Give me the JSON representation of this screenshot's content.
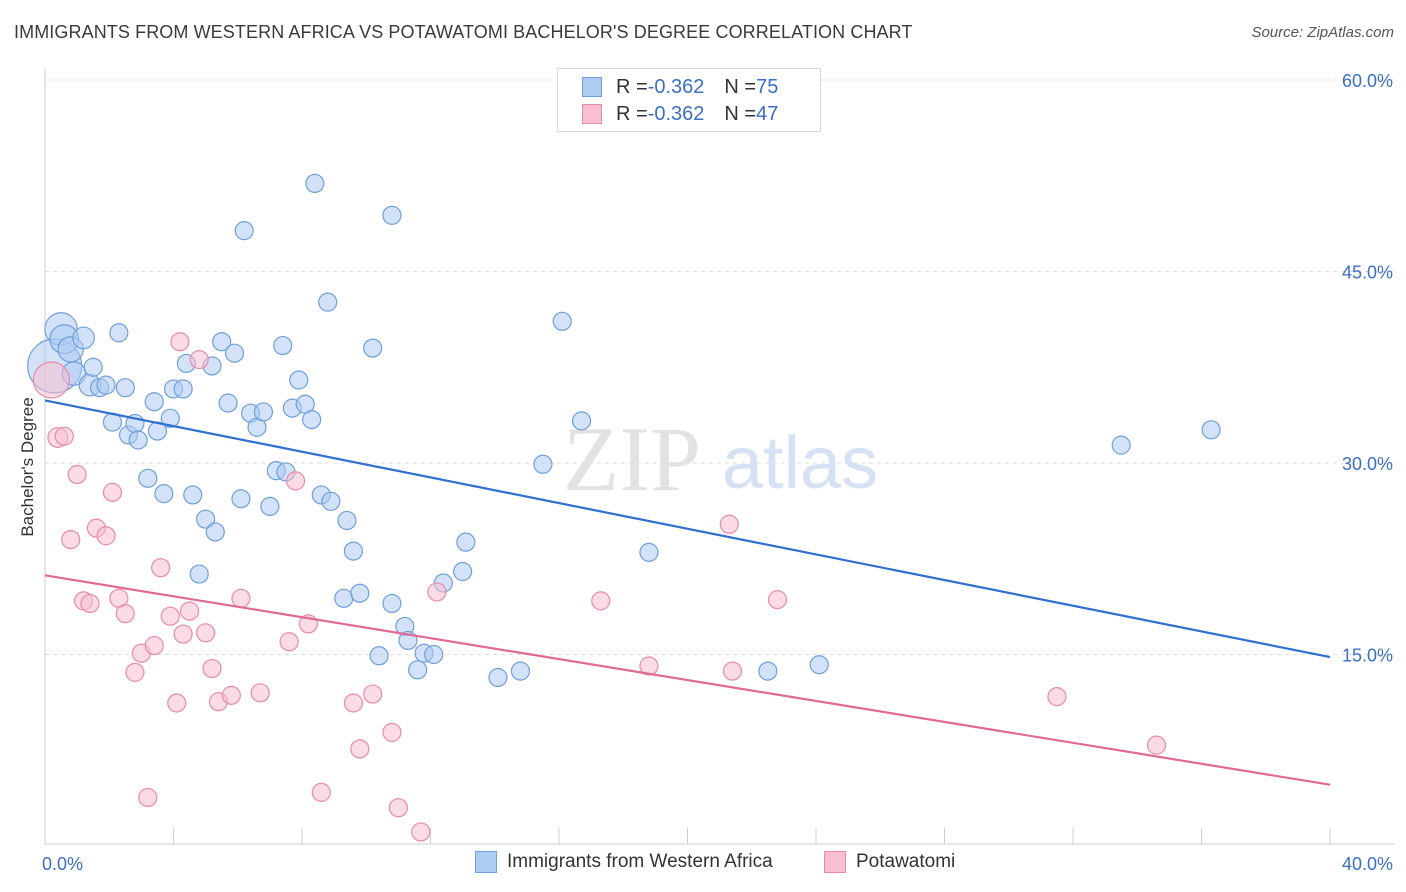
{
  "title": "IMMIGRANTS FROM WESTERN AFRICA VS POTAWATOMI BACHELOR'S DEGREE CORRELATION CHART",
  "source": "Source: ZipAtlas.com",
  "watermark": {
    "zip": "ZIP",
    "atlas": "atlas"
  },
  "legend": {
    "rows": [
      {
        "r_label": "R = ",
        "r_value": "-0.362",
        "n_label": "N = ",
        "n_value": "75"
      },
      {
        "r_label": "R = ",
        "r_value": "-0.362",
        "n_label": "N = ",
        "n_value": "47"
      }
    ]
  },
  "colors": {
    "blue_fill": "#aecbf2",
    "blue_stroke": "#6f9fdc",
    "blue_line": "#2f6fcf",
    "pink_fill": "#f7bfd0",
    "pink_stroke": "#e98aa8",
    "pink_line": "#e06a92",
    "tick_label": "#3a6fc4",
    "grid": "#dcdcdc"
  },
  "chart_data": {
    "type": "scatter",
    "title": "IMMIGRANTS FROM WESTERN AFRICA VS POTAWATOMI BACHELOR'S DEGREE CORRELATION CHART",
    "xlabel": "",
    "ylabel": "Bachelor's Degree",
    "xlim": [
      0,
      40
    ],
    "ylim": [
      0,
      60
    ],
    "x_tick_labels": [
      "0.0%",
      "40.0%"
    ],
    "y_ticks": [
      15,
      30,
      45,
      60
    ],
    "y_tick_labels": [
      "15.0%",
      "30.0%",
      "45.0%",
      "60.0%"
    ],
    "grid": true,
    "legend_position": "top-center",
    "series": [
      {
        "name": "Immigrants from Western Africa",
        "color": "#aecbf2",
        "trend": {
          "x": [
            0,
            40
          ],
          "y": [
            34.9,
            14.8
          ]
        },
        "points": [
          [
            0.3,
            37.6,
            3.0
          ],
          [
            0.5,
            40.5,
            1.8
          ],
          [
            0.6,
            39.7,
            1.6
          ],
          [
            0.8,
            38.9,
            1.4
          ],
          [
            0.9,
            37.0,
            1.3
          ],
          [
            1.2,
            39.8,
            1.2
          ],
          [
            1.4,
            36.1,
            1.2
          ],
          [
            1.5,
            37.5,
            1.0
          ],
          [
            1.7,
            35.9,
            1.0
          ],
          [
            1.9,
            36.1,
            1.0
          ],
          [
            2.1,
            33.2,
            1.0
          ],
          [
            2.3,
            40.2,
            1.0
          ],
          [
            2.5,
            35.9,
            1.0
          ],
          [
            2.6,
            32.2,
            1.0
          ],
          [
            2.8,
            33.1,
            1.0
          ],
          [
            2.9,
            31.8,
            1.0
          ],
          [
            3.2,
            28.8,
            1.0
          ],
          [
            3.4,
            34.8,
            1.0
          ],
          [
            3.5,
            32.5,
            1.0
          ],
          [
            3.7,
            27.6,
            1.0
          ],
          [
            3.9,
            33.5,
            1.0
          ],
          [
            4.0,
            35.8,
            1.0
          ],
          [
            4.3,
            35.8,
            1.0
          ],
          [
            4.4,
            37.8,
            1.0
          ],
          [
            4.6,
            27.5,
            1.0
          ],
          [
            4.8,
            21.3,
            1.0
          ],
          [
            5.0,
            25.6,
            1.0
          ],
          [
            5.2,
            37.6,
            1.0
          ],
          [
            5.3,
            24.6,
            1.0
          ],
          [
            5.5,
            39.5,
            1.0
          ],
          [
            5.7,
            34.7,
            1.0
          ],
          [
            5.9,
            38.6,
            1.0
          ],
          [
            6.1,
            27.2,
            1.0
          ],
          [
            6.2,
            48.2,
            1.0
          ],
          [
            6.4,
            33.9,
            1.0
          ],
          [
            6.6,
            32.8,
            1.0
          ],
          [
            6.8,
            34.0,
            1.0
          ],
          [
            7.0,
            26.6,
            1.0
          ],
          [
            7.2,
            29.4,
            1.0
          ],
          [
            7.4,
            39.2,
            1.0
          ],
          [
            7.5,
            29.3,
            1.0
          ],
          [
            7.7,
            34.3,
            1.0
          ],
          [
            7.9,
            36.5,
            1.0
          ],
          [
            8.1,
            34.6,
            1.0
          ],
          [
            8.3,
            33.4,
            1.0
          ],
          [
            8.4,
            51.9,
            1.0
          ],
          [
            8.6,
            27.5,
            1.0
          ],
          [
            8.8,
            42.6,
            1.0
          ],
          [
            8.9,
            27.0,
            1.0
          ],
          [
            9.3,
            19.4,
            1.0
          ],
          [
            9.4,
            25.5,
            1.0
          ],
          [
            9.6,
            23.1,
            1.0
          ],
          [
            9.8,
            19.8,
            1.0
          ],
          [
            10.2,
            39.0,
            1.0
          ],
          [
            10.4,
            14.9,
            1.0
          ],
          [
            10.8,
            49.4,
            1.0
          ],
          [
            10.8,
            19.0,
            1.0
          ],
          [
            11.2,
            17.2,
            1.0
          ],
          [
            11.3,
            16.1,
            1.0
          ],
          [
            11.6,
            13.8,
            1.0
          ],
          [
            11.8,
            15.1,
            1.0
          ],
          [
            12.1,
            15.0,
            1.0
          ],
          [
            12.4,
            20.6,
            1.0
          ],
          [
            13.0,
            21.5,
            1.0
          ],
          [
            13.1,
            23.8,
            1.0
          ],
          [
            14.1,
            13.2,
            1.0
          ],
          [
            14.8,
            13.7,
            1.0
          ],
          [
            15.5,
            29.9,
            1.0
          ],
          [
            16.1,
            41.1,
            1.0
          ],
          [
            16.7,
            33.3,
            1.0
          ],
          [
            18.8,
            23.0,
            1.0
          ],
          [
            22.5,
            13.7,
            1.0
          ],
          [
            24.1,
            14.2,
            1.0
          ],
          [
            33.5,
            31.4,
            1.0
          ],
          [
            36.3,
            32.6,
            1.0
          ]
        ]
      },
      {
        "name": "Potawatomi",
        "color": "#f7bfd0",
        "trend": {
          "x": [
            0,
            40
          ],
          "y": [
            21.2,
            4.8
          ]
        },
        "points": [
          [
            0.2,
            36.5,
            2.0
          ],
          [
            0.4,
            32.0,
            1.1
          ],
          [
            0.6,
            32.1,
            1.0
          ],
          [
            0.8,
            24.0,
            1.0
          ],
          [
            1.0,
            29.1,
            1.0
          ],
          [
            1.2,
            19.2,
            1.0
          ],
          [
            1.4,
            19.0,
            1.0
          ],
          [
            1.6,
            24.9,
            1.0
          ],
          [
            1.9,
            24.3,
            1.0
          ],
          [
            2.1,
            27.7,
            1.0
          ],
          [
            2.3,
            19.4,
            1.0
          ],
          [
            2.5,
            18.2,
            1.0
          ],
          [
            2.8,
            13.6,
            1.0
          ],
          [
            3.0,
            15.1,
            1.0
          ],
          [
            3.2,
            3.8,
            1.0
          ],
          [
            3.4,
            15.7,
            1.0
          ],
          [
            3.6,
            21.8,
            1.0
          ],
          [
            3.9,
            18.0,
            1.0
          ],
          [
            4.1,
            11.2,
            1.0
          ],
          [
            4.3,
            16.6,
            1.0
          ],
          [
            4.5,
            18.4,
            1.0
          ],
          [
            4.8,
            38.1,
            1.0
          ],
          [
            5.0,
            16.7,
            1.0
          ],
          [
            5.2,
            13.9,
            1.0
          ],
          [
            5.4,
            11.3,
            1.0
          ],
          [
            5.8,
            11.8,
            1.0
          ],
          [
            6.1,
            19.4,
            1.0
          ],
          [
            6.7,
            12.0,
            1.0
          ],
          [
            7.6,
            16.0,
            1.0
          ],
          [
            7.8,
            28.6,
            1.0
          ],
          [
            8.2,
            17.4,
            1.0
          ],
          [
            8.6,
            4.2,
            1.0
          ],
          [
            9.6,
            11.2,
            1.0
          ],
          [
            9.8,
            7.6,
            1.0
          ],
          [
            10.2,
            11.9,
            1.0
          ],
          [
            10.8,
            8.9,
            1.0
          ],
          [
            11.0,
            3.0,
            1.0
          ],
          [
            11.7,
            1.1,
            1.0
          ],
          [
            12.2,
            19.9,
            1.0
          ],
          [
            4.2,
            39.5,
            1.0
          ],
          [
            17.3,
            19.2,
            1.0
          ],
          [
            18.8,
            14.1,
            1.0
          ],
          [
            21.3,
            25.2,
            1.0
          ],
          [
            21.4,
            13.7,
            1.0
          ],
          [
            22.8,
            19.3,
            1.0
          ],
          [
            31.5,
            11.7,
            1.0
          ],
          [
            34.6,
            7.9,
            1.0
          ]
        ]
      }
    ]
  }
}
